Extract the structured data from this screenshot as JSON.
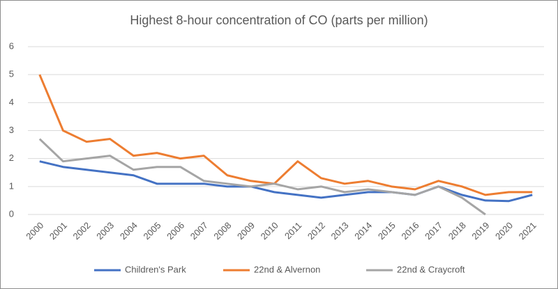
{
  "chart_data": {
    "type": "line",
    "title": "Highest 8-hour concentration of CO (parts per million)",
    "categories": [
      "2000",
      "2001",
      "2002",
      "2003",
      "2004",
      "2005",
      "2006",
      "2007",
      "2008",
      "2009",
      "2010",
      "2011",
      "2012",
      "2013",
      "2014",
      "2015",
      "2016",
      "2017",
      "2018",
      "2019",
      "2020",
      "2021"
    ],
    "series": [
      {
        "name": "Children's Park",
        "color": "#4472c4",
        "values": [
          1.9,
          1.7,
          1.6,
          1.5,
          1.4,
          1.1,
          1.1,
          1.1,
          1.0,
          1.0,
          0.8,
          0.7,
          0.6,
          0.7,
          0.8,
          0.8,
          0.7,
          1.0,
          0.7,
          0.5,
          0.48,
          0.7
        ]
      },
      {
        "name": "22nd & Alvernon",
        "color": "#ed7d31",
        "values": [
          5.0,
          3.0,
          2.6,
          2.7,
          2.1,
          2.2,
          2.0,
          2.1,
          1.4,
          1.2,
          1.1,
          1.9,
          1.3,
          1.1,
          1.2,
          1.0,
          0.9,
          1.2,
          1.0,
          0.7,
          0.8,
          0.8
        ]
      },
      {
        "name": "22nd & Craycroft",
        "color": "#a5a5a5",
        "values": [
          2.7,
          1.9,
          2.0,
          2.1,
          1.6,
          1.7,
          1.7,
          1.2,
          1.1,
          1.0,
          1.1,
          0.9,
          1.0,
          0.8,
          0.9,
          0.8,
          0.7,
          1.0,
          0.6,
          0,
          null,
          null
        ]
      }
    ],
    "ylim": [
      0,
      6
    ],
    "yticks": [
      0,
      1,
      2,
      3,
      4,
      5,
      6
    ],
    "grid": true,
    "legend": "bottom"
  }
}
